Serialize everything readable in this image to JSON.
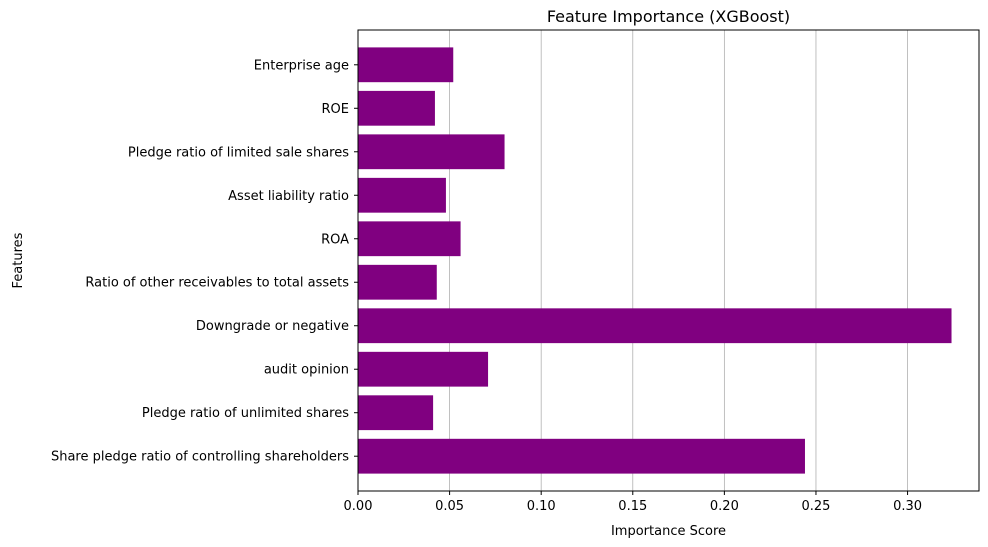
{
  "chart_data": {
    "type": "bar",
    "orientation": "horizontal",
    "title": "Feature Importance (XGBoost)",
    "xlabel": "Importance Score",
    "ylabel": "Features",
    "categories": [
      "Share pledge ratio of controlling shareholders",
      "Pledge ratio of unlimited shares",
      "audit opinion ",
      "Downgrade or negative",
      "Ratio of other receivables to total assets",
      "ROA",
      "Asset liability ratio",
      "Pledge ratio of limited sale shares",
      "ROE",
      "Enterprise age"
    ],
    "values": [
      0.244,
      0.041,
      0.071,
      0.324,
      0.043,
      0.056,
      0.048,
      0.08,
      0.042,
      0.052
    ],
    "xlim": [
      0,
      0.339
    ],
    "xticks": [
      0.0,
      0.05,
      0.1,
      0.15,
      0.2,
      0.25,
      0.3
    ],
    "xtick_labels": [
      "0.00",
      "0.05",
      "0.10",
      "0.15",
      "0.20",
      "0.25",
      "0.30"
    ],
    "grid": "x",
    "bar_color": "#800080"
  }
}
